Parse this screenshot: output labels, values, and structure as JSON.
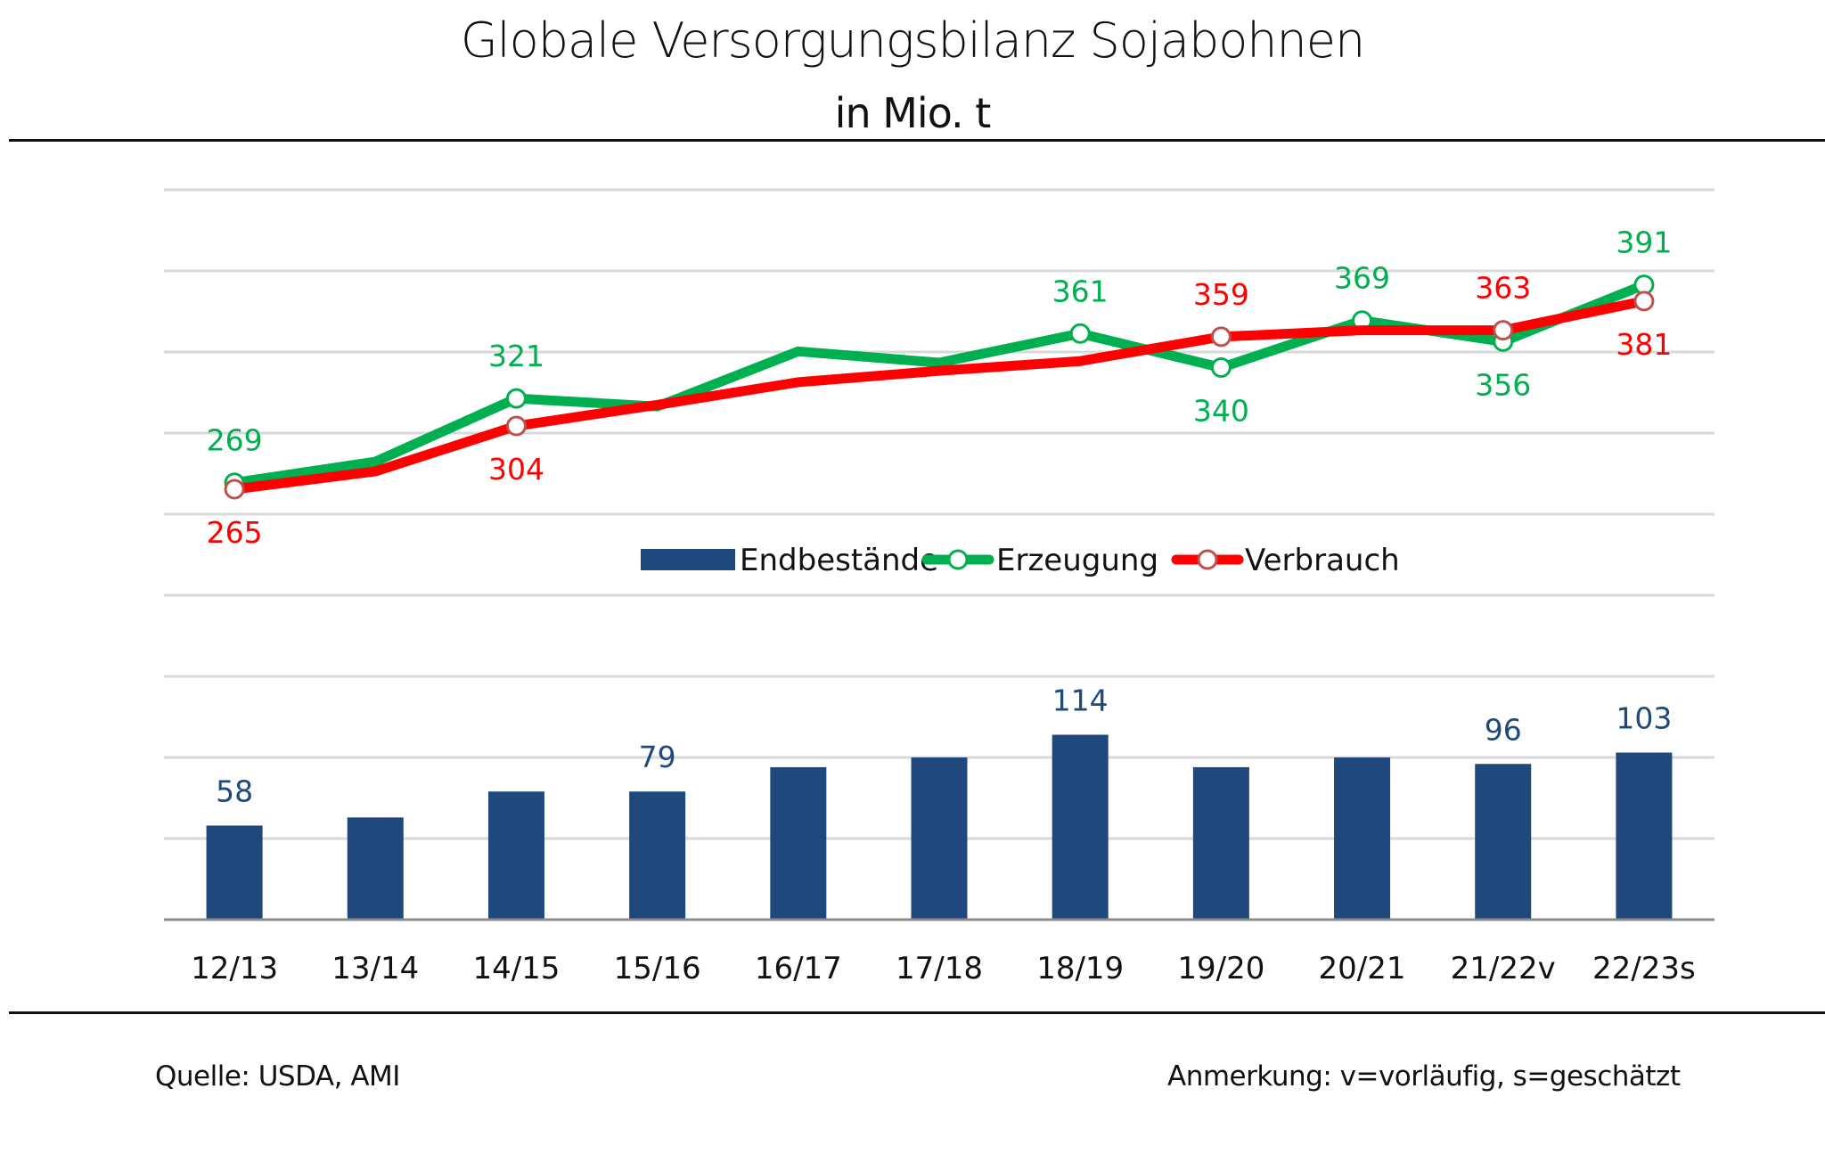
{
  "header": {
    "title": "Globale Versorgungsbilanz Sojabohnen",
    "subtitle": "in Mio. t"
  },
  "footer": {
    "source": "Quelle: USDA, AMI",
    "note": "Anmerkung: v=vorläufig, s=geschätzt"
  },
  "chart_data": {
    "type": "bar+line",
    "title": "Globale Versorgungsbilanz Sojabohnen",
    "subtitle": "in Mio. t",
    "xlabel": "",
    "ylabel": "",
    "grid": true,
    "legend_position": "center",
    "categories": [
      "12/13",
      "13/14",
      "14/15",
      "15/16",
      "16/17",
      "17/18",
      "18/19",
      "19/20",
      "20/21",
      "21/22v",
      "22/23s"
    ],
    "series": [
      {
        "name": "Endbestände",
        "type": "bar",
        "color": "#1f497d",
        "values": [
          58,
          63,
          79,
          79,
          94,
          100,
          114,
          94,
          100,
          96,
          103
        ],
        "labels": [
          "58",
          "",
          "",
          "79",
          "",
          "",
          "114",
          "",
          "",
          "96",
          "103"
        ],
        "ylim": [
          0,
          450
        ]
      },
      {
        "name": "Erzeugung",
        "type": "line",
        "color": "#00b050",
        "values": [
          269,
          282,
          321,
          316,
          350,
          343,
          361,
          340,
          369,
          356,
          391
        ],
        "labels": [
          "269",
          "",
          "321",
          "",
          "",
          "",
          "361",
          "340",
          "369",
          "356",
          "391"
        ],
        "label_positions": [
          "above",
          "",
          "above",
          "",
          "",
          "",
          "above",
          "below",
          "above",
          "below",
          "above"
        ],
        "ylim": [
          100,
          450
        ]
      },
      {
        "name": "Verbrauch",
        "type": "line",
        "color": "#ff0000",
        "marker_edge": "#c0504d",
        "values": [
          265,
          276,
          304,
          317,
          331,
          338,
          344,
          359,
          363,
          363,
          381
        ],
        "labels": [
          "265",
          "",
          "304",
          "",
          "",
          "",
          "",
          "359",
          "",
          "363",
          "381"
        ],
        "label_positions": [
          "below",
          "",
          "below",
          "",
          "",
          "",
          "",
          "above",
          "",
          "above",
          "below"
        ],
        "ylim": [
          100,
          450
        ]
      }
    ]
  }
}
